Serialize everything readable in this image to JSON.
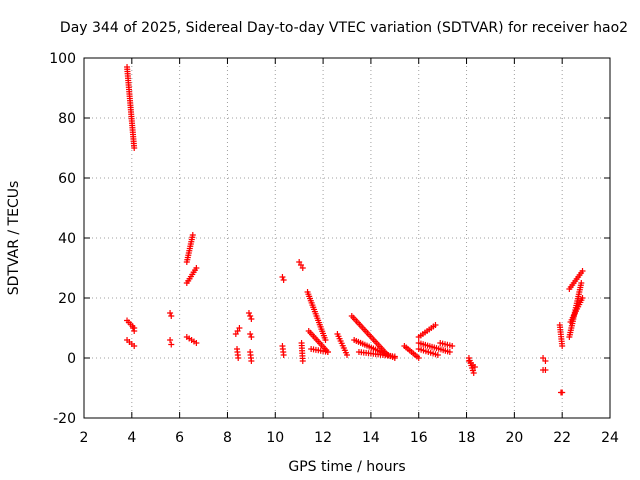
{
  "chart_data": {
    "type": "scatter",
    "title": "Day 344 of 2025, Sidereal Day-to-day VTEC variation (SDTVAR) for receiver hao2",
    "xlabel": "GPS time / hours",
    "ylabel": "SDTVAR / TECUs",
    "xlim": [
      2,
      24
    ],
    "ylim": [
      -20,
      100
    ],
    "xticks": [
      "2",
      "4",
      "6",
      "8",
      "10",
      "12",
      "14",
      "16",
      "18",
      "20",
      "22",
      "24"
    ],
    "yticks": [
      "-20",
      "0",
      "20",
      "40",
      "60",
      "80",
      "100"
    ],
    "grid": true,
    "marker": "+",
    "color": "#ff0000",
    "series": [
      {
        "name": "SDTVAR",
        "segments": [
          {
            "x": [
              3.8,
              4.1
            ],
            "y": [
              97,
              70
            ]
          },
          {
            "x": [
              3.8,
              4.1
            ],
            "y": [
              12.5,
              10
            ]
          },
          {
            "x": [
              3.8,
              4.1
            ],
            "y": [
              6,
              4
            ]
          },
          {
            "x": [
              4.05,
              4.1
            ],
            "y": [
              10,
              9
            ]
          },
          {
            "x": [
              5.6,
              5.65
            ],
            "y": [
              15,
              14
            ]
          },
          {
            "x": [
              5.6,
              5.65
            ],
            "y": [
              6,
              4.5
            ]
          },
          {
            "x": [
              6.3,
              6.55
            ],
            "y": [
              32,
              41
            ]
          },
          {
            "x": [
              6.3,
              6.7
            ],
            "y": [
              25,
              30
            ]
          },
          {
            "x": [
              6.3,
              6.7
            ],
            "y": [
              7,
              5
            ]
          },
          {
            "x": [
              8.35,
              8.5
            ],
            "y": [
              8,
              10
            ]
          },
          {
            "x": [
              8.4,
              8.45
            ],
            "y": [
              3,
              0
            ]
          },
          {
            "x": [
              8.9,
              9.0
            ],
            "y": [
              15,
              13
            ]
          },
          {
            "x": [
              8.95,
              9.0
            ],
            "y": [
              8,
              7
            ]
          },
          {
            "x": [
              8.95,
              9.0
            ],
            "y": [
              2,
              -1
            ]
          },
          {
            "x": [
              10.3,
              10.35
            ],
            "y": [
              27,
              26
            ]
          },
          {
            "x": [
              10.3,
              10.35
            ],
            "y": [
              4,
              1
            ]
          },
          {
            "x": [
              11.0,
              11.15
            ],
            "y": [
              32,
              30
            ]
          },
          {
            "x": [
              11.1,
              11.15
            ],
            "y": [
              5,
              -1
            ]
          },
          {
            "x": [
              11.35,
              12.1
            ],
            "y": [
              22,
              6
            ]
          },
          {
            "x": [
              11.4,
              12.2
            ],
            "y": [
              9,
              2
            ]
          },
          {
            "x": [
              11.5,
              12.2
            ],
            "y": [
              3,
              2
            ]
          },
          {
            "x": [
              12.6,
              13.0
            ],
            "y": [
              8,
              1
            ]
          },
          {
            "x": [
              13.2,
              14.7
            ],
            "y": [
              14,
              1
            ]
          },
          {
            "x": [
              13.3,
              15.0
            ],
            "y": [
              6,
              0
            ]
          },
          {
            "x": [
              13.5,
              15.0
            ],
            "y": [
              2,
              0.5
            ]
          },
          {
            "x": [
              15.4,
              16.0
            ],
            "y": [
              4,
              0
            ]
          },
          {
            "x": [
              16.0,
              16.7
            ],
            "y": [
              7,
              11
            ]
          },
          {
            "x": [
              16.0,
              17.3
            ],
            "y": [
              5,
              2
            ]
          },
          {
            "x": [
              16.0,
              16.8
            ],
            "y": [
              3,
              1
            ]
          },
          {
            "x": [
              16.9,
              17.4
            ],
            "y": [
              5,
              4
            ]
          },
          {
            "x": [
              18.1,
              18.3
            ],
            "y": [
              0,
              -5
            ]
          },
          {
            "x": [
              18.1,
              18.35
            ],
            "y": [
              -1,
              -3
            ]
          },
          {
            "x": [
              21.2,
              21.3
            ],
            "y": [
              0,
              -1
            ]
          },
          {
            "x": [
              21.2,
              21.3
            ],
            "y": [
              -4,
              -4
            ]
          },
          {
            "x": [
              21.9,
              22.0
            ],
            "y": [
              11,
              4
            ]
          },
          {
            "x": [
              21.95,
              22.0
            ],
            "y": [
              -11.5,
              -11.5
            ]
          },
          {
            "x": [
              22.3,
              22.85
            ],
            "y": [
              23,
              29
            ]
          },
          {
            "x": [
              22.3,
              22.8
            ],
            "y": [
              7,
              25
            ]
          },
          {
            "x": [
              22.35,
              22.85
            ],
            "y": [
              12,
              20
            ]
          }
        ]
      }
    ]
  }
}
